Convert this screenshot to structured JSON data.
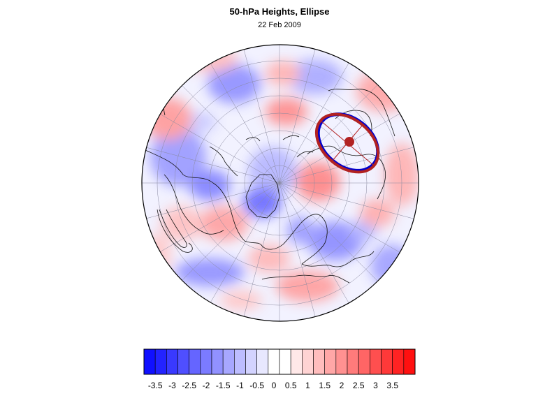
{
  "title": "50-hPa Heights, Ellipse",
  "subtitle": "22 Feb 2009",
  "colorbar": {
    "tick_labels": [
      "-3.5",
      "-3",
      "-2.5",
      "-2",
      "-1.5",
      "-1",
      "-0.5",
      "0",
      "0.5",
      "1",
      "1.5",
      "2",
      "2.5",
      "3",
      "3.5"
    ],
    "colors": [
      "#1010ff",
      "#2323ff",
      "#3939ff",
      "#4f4fff",
      "#6565ff",
      "#7b7bff",
      "#9191ff",
      "#a7a7ff",
      "#bdbdff",
      "#d3d3ff",
      "#e8e8ff",
      "#ffffff",
      "#ffffff",
      "#ffe8e8",
      "#ffd3d3",
      "#ffbdbd",
      "#ffa7a7",
      "#ff9191",
      "#ff7b7b",
      "#ff6565",
      "#ff4f4f",
      "#ff3939",
      "#ff2323",
      "#ff1010"
    ]
  },
  "ellipse": {
    "outline_color": "#b22222",
    "contour_color": "#0000cc",
    "center_color": "#b22222"
  }
}
